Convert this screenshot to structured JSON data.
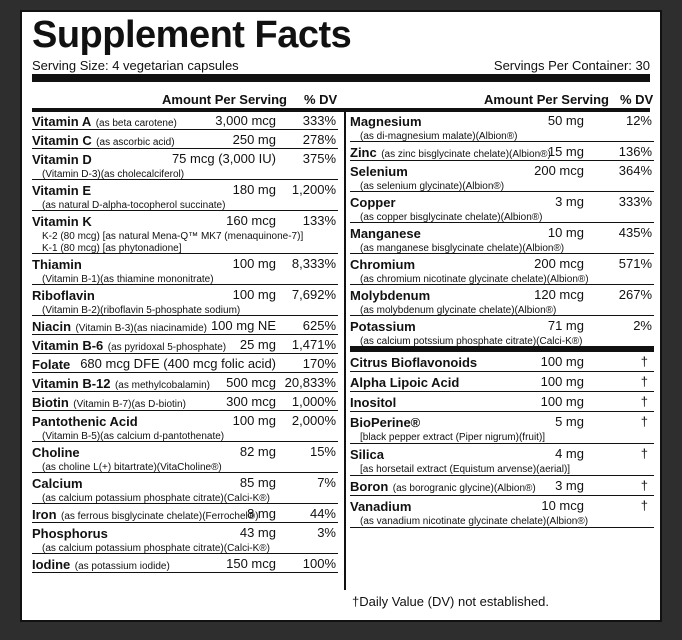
{
  "title": "Supplement Facts",
  "serving_size": "Serving Size: 4 vegetarian capsules",
  "servings_per_container": "Servings Per Container: 30",
  "col_amount": "Amount Per Serving",
  "col_dv": "% DV",
  "left_rows": [
    {
      "name": "Vitamin A",
      "note": "(as beta carotene)",
      "amt": "3,000 mcg",
      "dv": "333%",
      "sub": ""
    },
    {
      "name": "Vitamin C",
      "note": "(as ascorbic acid)",
      "amt": "250 mg",
      "dv": "278%",
      "sub": ""
    },
    {
      "name": "Vitamin D",
      "note": "",
      "amt": "75 mcg (3,000 IU)",
      "dv": "375%",
      "sub": "(Vitamin D-3)(as cholecalciferol)"
    },
    {
      "name": "Vitamin E",
      "note": "",
      "amt": "180 mg",
      "dv": "1,200%",
      "sub": "(as natural D-alpha-tocopherol succinate)"
    },
    {
      "name": "Vitamin K",
      "note": "",
      "amt": "160 mcg",
      "dv": "133%",
      "sub": "K-2 (80 mcg) [as natural Mena-Q™ MK7 (menaquinone-7)]\nK-1 (80 mcg) [as phytonadione]"
    },
    {
      "name": "Thiamin",
      "note": "",
      "amt": "100 mg",
      "dv": "8,333%",
      "sub": "(Vitamin B-1)(as thiamine mononitrate)"
    },
    {
      "name": "Riboflavin",
      "note": "",
      "amt": "100 mg",
      "dv": "7,692%",
      "sub": "(Vitamin B-2)(riboflavin 5-phosphate sodium)"
    },
    {
      "name": "Niacin",
      "note": "(Vitamin B-3)(as niacinamide)",
      "amt": "100 mg NE",
      "dv": "625%",
      "sub": ""
    },
    {
      "name": "Vitamin B-6",
      "note": "(as pyridoxal 5-phosphate)",
      "amt": "25 mg",
      "dv": "1,471%",
      "sub": ""
    },
    {
      "name": "Folate",
      "note": "",
      "amt": "680 mcg DFE (400 mcg folic acid)",
      "dv": "170%",
      "sub": ""
    },
    {
      "name": "Vitamin B-12",
      "note": "(as methylcobalamin)",
      "amt": "500 mcg",
      "dv": "20,833%",
      "sub": ""
    },
    {
      "name": "Biotin",
      "note": "(Vitamin B-7)(as D-biotin)",
      "amt": "300 mcg",
      "dv": "1,000%",
      "sub": ""
    },
    {
      "name": "Pantothenic Acid",
      "note": "",
      "amt": "100 mg",
      "dv": "2,000%",
      "sub": "(Vitamin B-5)(as calcium d-pantothenate)"
    },
    {
      "name": "Choline",
      "note": "",
      "amt": "82 mg",
      "dv": "15%",
      "sub": "(as choline L(+) bitartrate)(VitaCholine®)"
    },
    {
      "name": "Calcium",
      "note": "",
      "amt": "85 mg",
      "dv": "7%",
      "sub": "(as calcium potassium phosphate citrate)(Calci-K®)"
    },
    {
      "name": "Iron",
      "note": "(as ferrous bisglycinate chelate)(Ferrochel®)",
      "amt": "8 mg",
      "dv": "44%",
      "sub": ""
    },
    {
      "name": "Phosphorus",
      "note": "",
      "amt": "43 mg",
      "dv": "3%",
      "sub": "(as calcium potassium phosphate citrate)(Calci-K®)"
    },
    {
      "name": "Iodine",
      "note": "(as potassium iodide)",
      "amt": "150 mcg",
      "dv": "100%",
      "sub": ""
    }
  ],
  "right_rows": [
    {
      "name": "Magnesium",
      "note": "",
      "amt": "50 mg",
      "dv": "12%",
      "sub": "(as di-magnesium malate)(Albion®)"
    },
    {
      "name": "Zinc",
      "note": "(as zinc bisglycinate chelate)(Albion®)",
      "amt": "15 mg",
      "dv": "136%",
      "sub": ""
    },
    {
      "name": "Selenium",
      "note": "",
      "amt": "200 mcg",
      "dv": "364%",
      "sub": "(as selenium glycinate)(Albion®)"
    },
    {
      "name": "Copper",
      "note": "",
      "amt": "3 mg",
      "dv": "333%",
      "sub": "(as copper bisglycinate chelate)(Albion®)"
    },
    {
      "name": "Manganese",
      "note": "",
      "amt": "10 mg",
      "dv": "435%",
      "sub": "(as manganese bisglycinate chelate)(Albion®)"
    },
    {
      "name": "Chromium",
      "note": "",
      "amt": "200 mcg",
      "dv": "571%",
      "sub": "(as chromium nicotinate glycinate chelate)(Albion®)"
    },
    {
      "name": "Molybdenum",
      "note": "",
      "amt": "120 mcg",
      "dv": "267%",
      "sub": "(as molybdenum glycinate chelate)(Albion®)"
    },
    {
      "name": "Potassium",
      "note": "",
      "amt": "71 mg",
      "dv": "2%",
      "sub": "(as calcium potssium phosphate citrate)(Calci-K®)"
    }
  ],
  "right_rows2": [
    {
      "name": "Citrus Bioflavonoids",
      "note": "",
      "amt": "100 mg",
      "dv": "†",
      "sub": ""
    },
    {
      "name": "Alpha Lipoic Acid",
      "note": "",
      "amt": "100 mg",
      "dv": "†",
      "sub": ""
    },
    {
      "name": "Inositol",
      "note": "",
      "amt": "100 mg",
      "dv": "†",
      "sub": ""
    },
    {
      "name": "BioPerine®",
      "note": "",
      "amt": "5 mg",
      "dv": "†",
      "sub": "[black pepper extract (Piper nigrum)(fruit)]"
    },
    {
      "name": "Silica",
      "note": "",
      "amt": "4 mg",
      "dv": "†",
      "sub": "[as horsetail extract (Equistum arvense)(aerial)]"
    },
    {
      "name": "Boron",
      "note": "(as borogranic glycine)(Albion®)",
      "amt": "3 mg",
      "dv": "†",
      "sub": ""
    },
    {
      "name": "Vanadium",
      "note": "",
      "amt": "10 mcg",
      "dv": "†",
      "sub": "(as vanadium nicotinate glycinate chelate)(Albion®)"
    }
  ],
  "footnote": "†Daily Value (DV) not established."
}
